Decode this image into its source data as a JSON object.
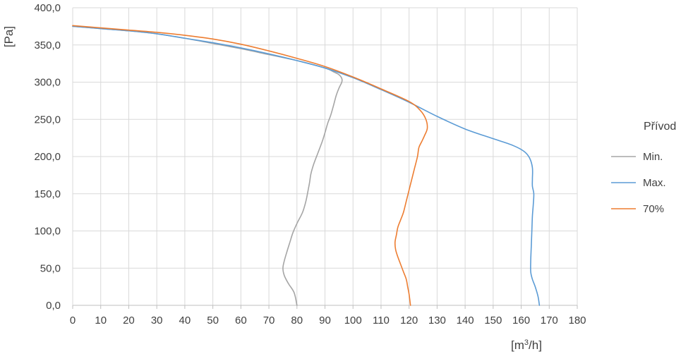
{
  "chart_data": {
    "type": "line",
    "title": "",
    "xlabel": "[m³/h]",
    "xlabel_base": "[m",
    "xlabel_sup": "3",
    "xlabel_tail": "/h]",
    "ylabel": "[Pa]",
    "xlim": [
      0,
      180
    ],
    "ylim": [
      0,
      400
    ],
    "x_ticks": [
      "0",
      "10",
      "20",
      "30",
      "40",
      "50",
      "60",
      "70",
      "80",
      "90",
      "100",
      "110",
      "120",
      "130",
      "140",
      "150",
      "160",
      "170",
      "180"
    ],
    "y_ticks": [
      "0,0",
      "50,0",
      "100,0",
      "150,0",
      "200,0",
      "250,0",
      "300,0",
      "350,0",
      "400,0"
    ],
    "grid": true,
    "legend_title": "Přívod",
    "legend_position": "right",
    "series": [
      {
        "name": "Min.",
        "color": "#a5a5a5",
        "points": [
          [
            0,
            375
          ],
          [
            10,
            372
          ],
          [
            20,
            369
          ],
          [
            30,
            365
          ],
          [
            40,
            359
          ],
          [
            50,
            352
          ],
          [
            60,
            345
          ],
          [
            70,
            337
          ],
          [
            80,
            329
          ],
          [
            90,
            319
          ],
          [
            93,
            314
          ],
          [
            95,
            310
          ],
          [
            96,
            305
          ],
          [
            96,
            300
          ],
          [
            95,
            292
          ],
          [
            94,
            282
          ],
          [
            93,
            268
          ],
          [
            92,
            255
          ],
          [
            91,
            245
          ],
          [
            90,
            232
          ],
          [
            89,
            220
          ],
          [
            87.5,
            205
          ],
          [
            86,
            190
          ],
          [
            85,
            177
          ],
          [
            84.5,
            165
          ],
          [
            84,
            155
          ],
          [
            83.2,
            140
          ],
          [
            82,
            125
          ],
          [
            80,
            110
          ],
          [
            78.5,
            97
          ],
          [
            77.5,
            85
          ],
          [
            76.5,
            73
          ],
          [
            75.5,
            60
          ],
          [
            75,
            50
          ],
          [
            75.5,
            40
          ],
          [
            77,
            29
          ],
          [
            79,
            17
          ],
          [
            80,
            0
          ]
        ]
      },
      {
        "name": "Max.",
        "color": "#5b9bd5",
        "points": [
          [
            0,
            375
          ],
          [
            10,
            372
          ],
          [
            20,
            369
          ],
          [
            30,
            365
          ],
          [
            40,
            359
          ],
          [
            50,
            353
          ],
          [
            60,
            346
          ],
          [
            70,
            338
          ],
          [
            80,
            329
          ],
          [
            90,
            319
          ],
          [
            100,
            306
          ],
          [
            110,
            290
          ],
          [
            120,
            273
          ],
          [
            130,
            254
          ],
          [
            140,
            237
          ],
          [
            150,
            224
          ],
          [
            157,
            215
          ],
          [
            161,
            207
          ],
          [
            163,
            198
          ],
          [
            164,
            185
          ],
          [
            164,
            170
          ],
          [
            164,
            160
          ],
          [
            164.5,
            150
          ],
          [
            164.3,
            135
          ],
          [
            164,
            120
          ],
          [
            163.8,
            100
          ],
          [
            163.6,
            80
          ],
          [
            163.4,
            60
          ],
          [
            163.4,
            45
          ],
          [
            164,
            35
          ],
          [
            165,
            25
          ],
          [
            166,
            12
          ],
          [
            166.5,
            0
          ]
        ]
      },
      {
        "name": "70%",
        "color": "#ed7d31",
        "points": [
          [
            0,
            376
          ],
          [
            10,
            373
          ],
          [
            20,
            370
          ],
          [
            30,
            367
          ],
          [
            40,
            363
          ],
          [
            50,
            358
          ],
          [
            60,
            351
          ],
          [
            70,
            342
          ],
          [
            80,
            332
          ],
          [
            90,
            321
          ],
          [
            100,
            307
          ],
          [
            110,
            291
          ],
          [
            120,
            274
          ],
          [
            124,
            262
          ],
          [
            126,
            250
          ],
          [
            126.5,
            238
          ],
          [
            125.5,
            228
          ],
          [
            124.5,
            220
          ],
          [
            123.5,
            212
          ],
          [
            123,
            200
          ],
          [
            122,
            185
          ],
          [
            121,
            170
          ],
          [
            120,
            155
          ],
          [
            119,
            140
          ],
          [
            118,
            125
          ],
          [
            117,
            115
          ],
          [
            116,
            105
          ],
          [
            115.5,
            95
          ],
          [
            115,
            85
          ],
          [
            115.2,
            75
          ],
          [
            116,
            65
          ],
          [
            117,
            55
          ],
          [
            118,
            45
          ],
          [
            119,
            35
          ],
          [
            119.5,
            25
          ],
          [
            120,
            15
          ],
          [
            120.5,
            0
          ]
        ]
      }
    ]
  }
}
